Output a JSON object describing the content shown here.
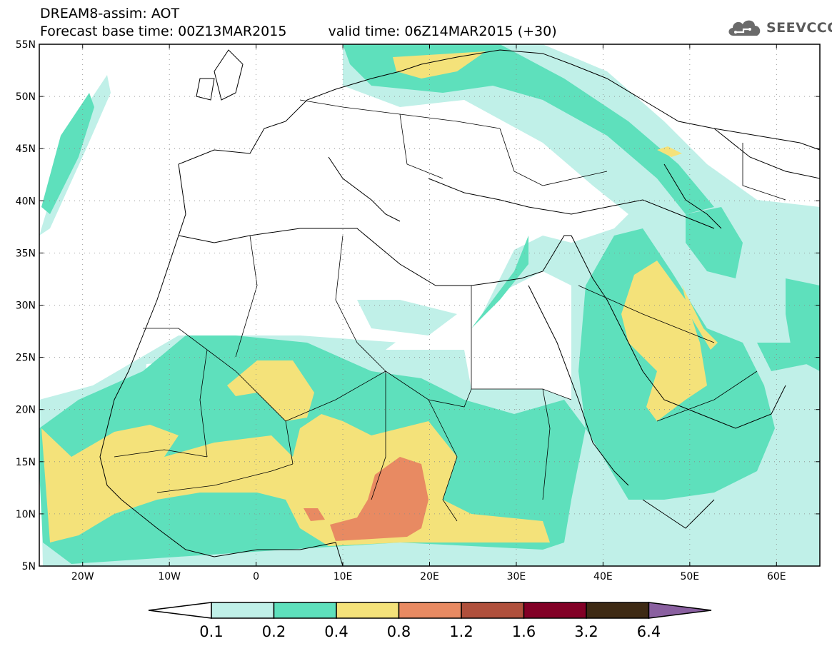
{
  "header": {
    "line1": "DREAM8-assim: AOT",
    "base_time": "Forecast base time: 00Z13MAR2015",
    "valid_time": "valid time: 06Z14MAR2015 (+30)"
  },
  "logo": {
    "text": "SEEVCCC",
    "icon": "cloud-icon"
  },
  "map": {
    "lat_labels": [
      "55N",
      "50N",
      "45N",
      "40N",
      "35N",
      "30N",
      "25N",
      "20N",
      "15N",
      "10N",
      "5N"
    ],
    "lon_labels": [
      "20W",
      "10W",
      "0",
      "10E",
      "20E",
      "30E",
      "40E",
      "50E",
      "60E"
    ],
    "lat_values": [
      55,
      50,
      45,
      40,
      35,
      30,
      25,
      20,
      15,
      10,
      5
    ],
    "lon_values": [
      -20,
      -10,
      0,
      10,
      20,
      30,
      40,
      50,
      60
    ],
    "lon_range": [
      -25,
      65
    ],
    "lat_range": [
      5,
      55
    ]
  },
  "legend": {
    "levels": [
      "0.1",
      "0.2",
      "0.4",
      "0.8",
      "1.2",
      "1.6",
      "3.2",
      "6.4"
    ],
    "colors": [
      "#ffffff",
      "#c0f0e8",
      "#5ee0bc",
      "#f4e27a",
      "#e88a62",
      "#b0503c",
      "#820026",
      "#3e2a14",
      "#8a60a0"
    ]
  }
}
